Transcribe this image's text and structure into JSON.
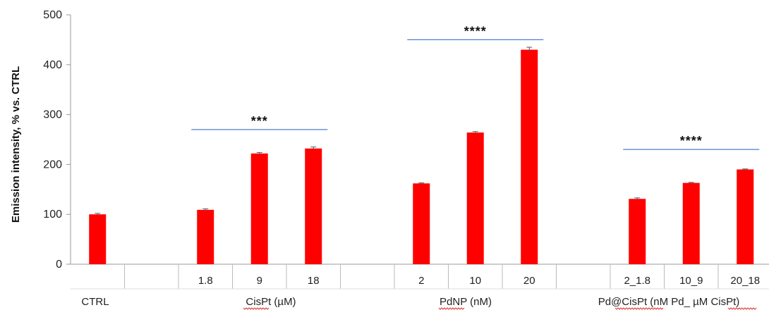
{
  "chart_data": {
    "type": "bar",
    "ylabel": "Emission intensity, % vs. CTRL",
    "ylim": [
      0,
      500
    ],
    "yticks": [
      "0",
      "100",
      "200",
      "300",
      "400",
      "500"
    ],
    "bar_color": "#ff0000",
    "error_color": "#555555",
    "sig_line_color": "#4a7fd4",
    "bars": [
      {
        "group": "CTRL",
        "label": "",
        "value": 100,
        "error": 2
      },
      {
        "group": "CisPt",
        "label": "1.8",
        "value": 109,
        "error": 2
      },
      {
        "group": "CisPt",
        "label": "9",
        "value": 222,
        "error": 2
      },
      {
        "group": "CisPt",
        "label": "18",
        "value": 232,
        "error": 3
      },
      {
        "group": "PdNP",
        "label": "2",
        "value": 162,
        "error": 1
      },
      {
        "group": "PdNP",
        "label": "10",
        "value": 264,
        "error": 2
      },
      {
        "group": "PdNP",
        "label": "20",
        "value": 430,
        "error": 5
      },
      {
        "group": "Pd@CisPt",
        "label": "2_1.8",
        "value": 131,
        "error": 2
      },
      {
        "group": "Pd@CisPt",
        "label": "10_9",
        "value": 163,
        "error": 1
      },
      {
        "group": "Pd@CisPt",
        "label": "20_18",
        "value": 190,
        "error": 1
      }
    ],
    "groups": [
      {
        "key": "CTRL",
        "label": "CTRL"
      },
      {
        "key": "CisPt",
        "label": "CisPt (µM)"
      },
      {
        "key": "PdNP",
        "label": "PdNP (nM)"
      },
      {
        "key": "Pd@CisPt",
        "label": "Pd@CisPt (nM Pd_ µM CisPt)"
      }
    ],
    "significance": [
      {
        "group": "CisPt",
        "label": "***",
        "level": 270
      },
      {
        "group": "PdNP",
        "label": "****",
        "level": 450
      },
      {
        "group": "Pd@CisPt",
        "label": "****",
        "level": 230
      }
    ]
  }
}
